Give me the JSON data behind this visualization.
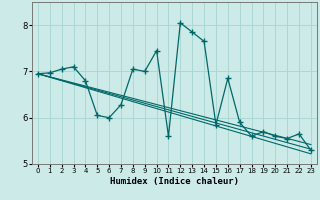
{
  "xlabel": "Humidex (Indice chaleur)",
  "bg_color": "#cceae7",
  "grid_color": "#aad8d3",
  "line_color": "#006868",
  "xlim": [
    -0.5,
    23.5
  ],
  "ylim": [
    5.0,
    8.5
  ],
  "yticks": [
    5,
    6,
    7,
    8
  ],
  "xticks": [
    0,
    1,
    2,
    3,
    4,
    5,
    6,
    7,
    8,
    9,
    10,
    11,
    12,
    13,
    14,
    15,
    16,
    17,
    18,
    19,
    20,
    21,
    22,
    23
  ],
  "series": [
    [
      0,
      6.95
    ],
    [
      1,
      6.97
    ],
    [
      2,
      7.05
    ],
    [
      3,
      7.1
    ],
    [
      4,
      6.8
    ],
    [
      5,
      6.05
    ],
    [
      6,
      6.0
    ],
    [
      7,
      6.28
    ],
    [
      8,
      7.05
    ],
    [
      9,
      7.0
    ],
    [
      10,
      7.45
    ],
    [
      11,
      5.6
    ],
    [
      12,
      8.05
    ],
    [
      13,
      7.85
    ],
    [
      14,
      7.65
    ],
    [
      15,
      5.85
    ],
    [
      16,
      6.85
    ],
    [
      17,
      5.9
    ],
    [
      18,
      5.6
    ],
    [
      19,
      5.7
    ],
    [
      20,
      5.6
    ],
    [
      21,
      5.55
    ],
    [
      22,
      5.65
    ],
    [
      23,
      5.3
    ]
  ],
  "regression_lines": [
    {
      "x": [
        0,
        23
      ],
      "y": [
        6.95,
        5.22
      ]
    },
    {
      "x": [
        0,
        23
      ],
      "y": [
        6.95,
        5.32
      ]
    },
    {
      "x": [
        0,
        23
      ],
      "y": [
        6.95,
        5.42
      ]
    }
  ]
}
